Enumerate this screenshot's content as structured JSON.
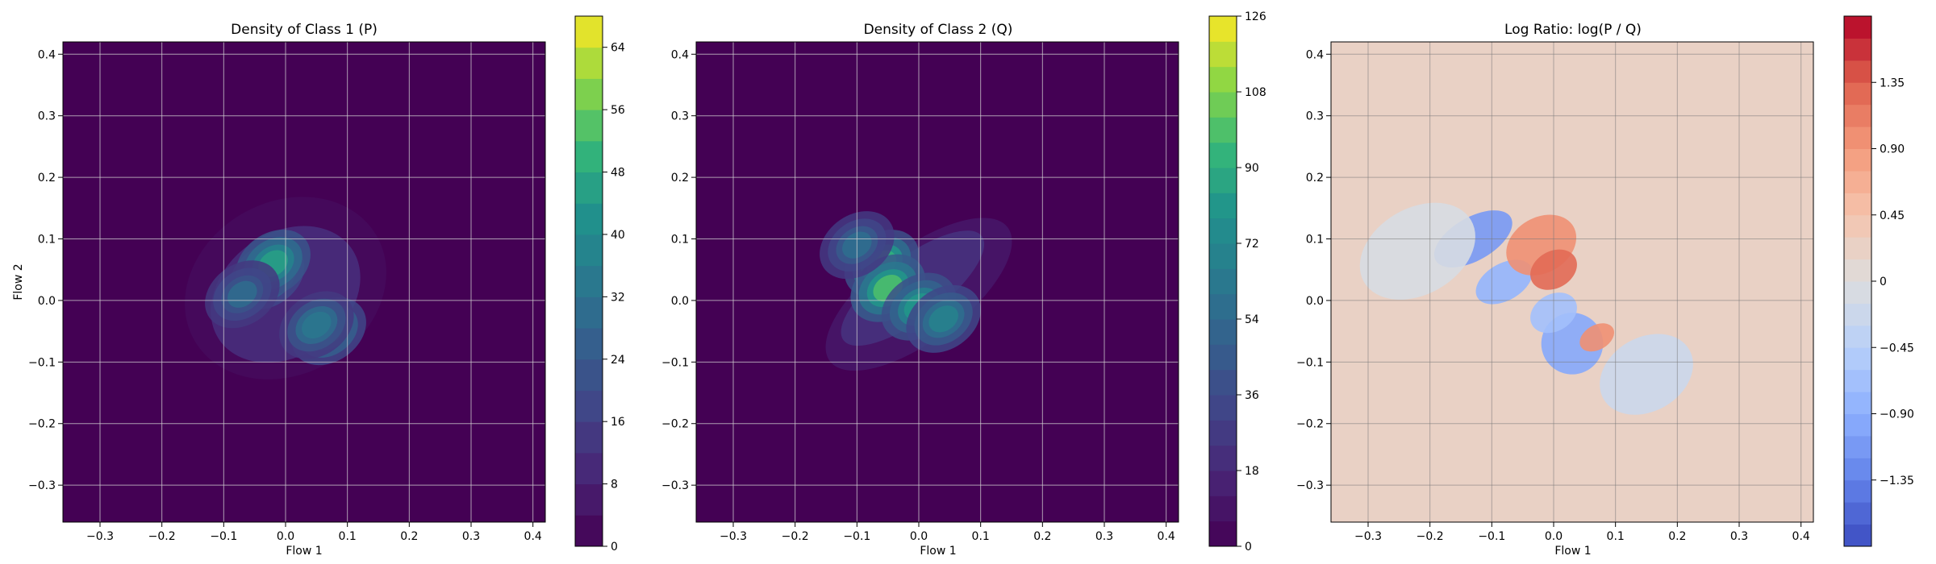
{
  "chart_data": [
    {
      "type": "heatmap",
      "title": "Density of Class 1 (P)",
      "xlabel": "Flow 1",
      "ylabel": "Flow 2",
      "xlim": [
        -0.36,
        0.42
      ],
      "ylim": [
        -0.36,
        0.42
      ],
      "x_ticks": [
        -0.3,
        -0.2,
        -0.1,
        0.0,
        0.1,
        0.2,
        0.3,
        0.4
      ],
      "y_ticks": [
        -0.3,
        -0.2,
        -0.1,
        0.0,
        0.1,
        0.2,
        0.3,
        0.4
      ],
      "grid": true,
      "colormap": "viridis",
      "colorbar": {
        "min": 0,
        "max": 68,
        "levels": 17,
        "ticks": [
          0,
          8,
          16,
          24,
          32,
          40,
          48,
          56,
          64
        ]
      },
      "background_color": "#440154",
      "features": [
        {
          "kind": "envelope",
          "cx": 0.0,
          "cy": 0.02,
          "rx": 0.17,
          "ry": 0.14,
          "rotation_deg": -30,
          "value": 3
        },
        {
          "kind": "envelope",
          "cx": 0.0,
          "cy": 0.01,
          "rx": 0.13,
          "ry": 0.1,
          "rotation_deg": -35,
          "value": 10
        },
        {
          "kind": "peak",
          "x": -0.03,
          "y": 0.04,
          "value": 42
        },
        {
          "kind": "peak",
          "x": -0.02,
          "y": 0.06,
          "value": 46
        },
        {
          "kind": "peak",
          "x": 0.07,
          "y": -0.05,
          "value": 40
        },
        {
          "kind": "peak",
          "x": 0.05,
          "y": -0.04,
          "value": 34
        },
        {
          "kind": "peak",
          "x": -0.07,
          "y": 0.01,
          "value": 28
        }
      ]
    },
    {
      "type": "heatmap",
      "title": "Density of Class 2 (Q)",
      "xlabel": "Flow 1",
      "ylabel": "",
      "xlim": [
        -0.36,
        0.42
      ],
      "ylim": [
        -0.36,
        0.42
      ],
      "x_ticks": [
        -0.3,
        -0.2,
        -0.1,
        0.0,
        0.1,
        0.2,
        0.3,
        0.4
      ],
      "y_ticks": [
        -0.3,
        -0.2,
        -0.1,
        0.0,
        0.1,
        0.2,
        0.3,
        0.4
      ],
      "grid": true,
      "colormap": "viridis",
      "colorbar": {
        "min": 0,
        "max": 126,
        "levels": 21,
        "ticks": [
          0,
          18,
          36,
          54,
          72,
          90,
          108,
          126
        ]
      },
      "background_color": "#440154",
      "features": [
        {
          "kind": "envelope",
          "cx": 0.0,
          "cy": 0.01,
          "rx": 0.18,
          "ry": 0.075,
          "rotation_deg": -37,
          "value": 6
        },
        {
          "kind": "envelope",
          "cx": -0.01,
          "cy": 0.02,
          "rx": 0.14,
          "ry": 0.05,
          "rotation_deg": -37,
          "value": 20
        },
        {
          "kind": "peak",
          "x": -0.06,
          "y": 0.06,
          "value": 92
        },
        {
          "kind": "peak",
          "x": -0.05,
          "y": 0.02,
          "value": 98
        },
        {
          "kind": "peak",
          "x": 0.0,
          "y": -0.01,
          "value": 82
        },
        {
          "kind": "peak",
          "x": 0.04,
          "y": -0.03,
          "value": 70
        },
        {
          "kind": "peak",
          "x": -0.1,
          "y": 0.09,
          "value": 55
        }
      ]
    },
    {
      "type": "heatmap",
      "title": "Log Ratio: log(P / Q)",
      "xlabel": "Flow 1",
      "ylabel": "",
      "xlim": [
        -0.36,
        0.42
      ],
      "ylim": [
        -0.36,
        0.42
      ],
      "x_ticks": [
        -0.3,
        -0.2,
        -0.1,
        0.0,
        0.1,
        0.2,
        0.3,
        0.4
      ],
      "y_ticks": [
        -0.3,
        -0.2,
        -0.1,
        0.0,
        0.1,
        0.2,
        0.3,
        0.4
      ],
      "grid": true,
      "colormap": "coolwarm",
      "colorbar": {
        "min": -1.8,
        "max": 1.8,
        "levels": 24,
        "ticks": [
          -1.35,
          -0.9,
          -0.45,
          0.0,
          0.45,
          0.9,
          1.35
        ]
      },
      "background_value": 0.25,
      "features": [
        {
          "kind": "blob",
          "x": -0.13,
          "y": 0.1,
          "rx": 0.07,
          "ry": 0.035,
          "value": -1.1
        },
        {
          "kind": "blob",
          "x": -0.08,
          "y": 0.03,
          "rx": 0.05,
          "ry": 0.03,
          "value": -0.8
        },
        {
          "kind": "blob",
          "x": 0.03,
          "y": -0.07,
          "rx": 0.05,
          "ry": 0.05,
          "value": -1.0
        },
        {
          "kind": "blob",
          "x": 0.0,
          "y": -0.02,
          "rx": 0.04,
          "ry": 0.03,
          "value": -0.7
        },
        {
          "kind": "blob",
          "x": -0.02,
          "y": 0.09,
          "rx": 0.06,
          "ry": 0.045,
          "value": 1.0
        },
        {
          "kind": "blob",
          "x": 0.0,
          "y": 0.05,
          "rx": 0.04,
          "ry": 0.03,
          "value": 1.25
        },
        {
          "kind": "blob",
          "x": 0.07,
          "y": -0.06,
          "rx": 0.03,
          "ry": 0.02,
          "value": 0.9
        },
        {
          "kind": "blob",
          "x": -0.22,
          "y": 0.08,
          "rx": 0.1,
          "ry": 0.07,
          "value": -0.15
        },
        {
          "kind": "blob",
          "x": 0.15,
          "y": -0.12,
          "rx": 0.08,
          "ry": 0.06,
          "value": -0.2
        }
      ]
    }
  ]
}
